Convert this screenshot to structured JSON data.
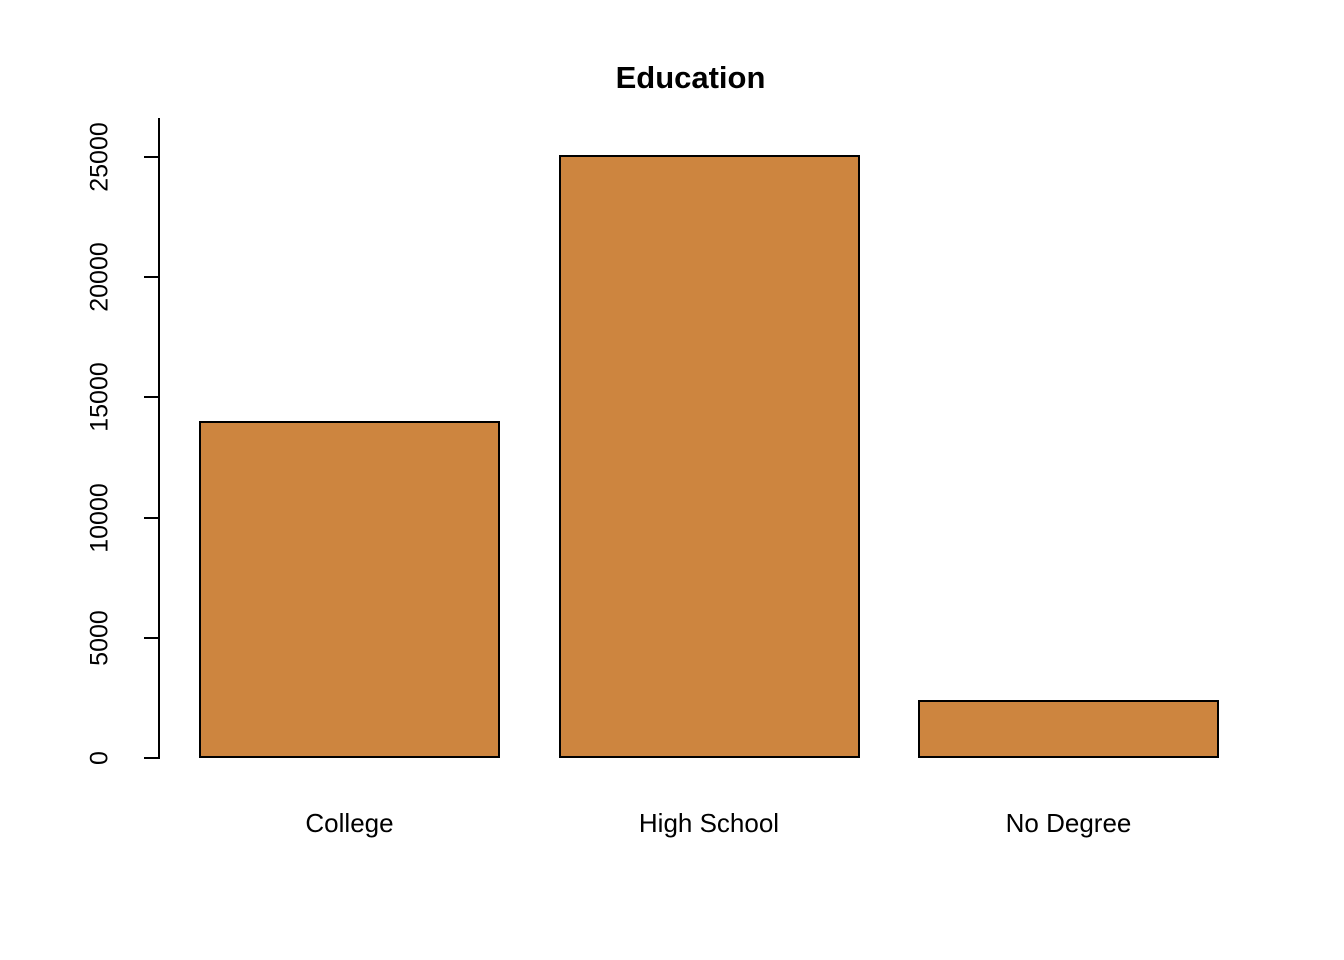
{
  "chart_data": {
    "type": "bar",
    "title": "Education",
    "categories": [
      "College",
      "High School",
      "No Degree"
    ],
    "values": [
      14000,
      25100,
      2400
    ],
    "xlabel": "",
    "ylabel": "",
    "ylim": [
      0,
      25000
    ],
    "yticks": [
      0,
      5000,
      10000,
      15000,
      20000,
      25000
    ],
    "grid": false,
    "legend": false,
    "bar_color": "#CD853F",
    "bar_border_color": "#000000",
    "background_color": "#FFFFFF"
  }
}
